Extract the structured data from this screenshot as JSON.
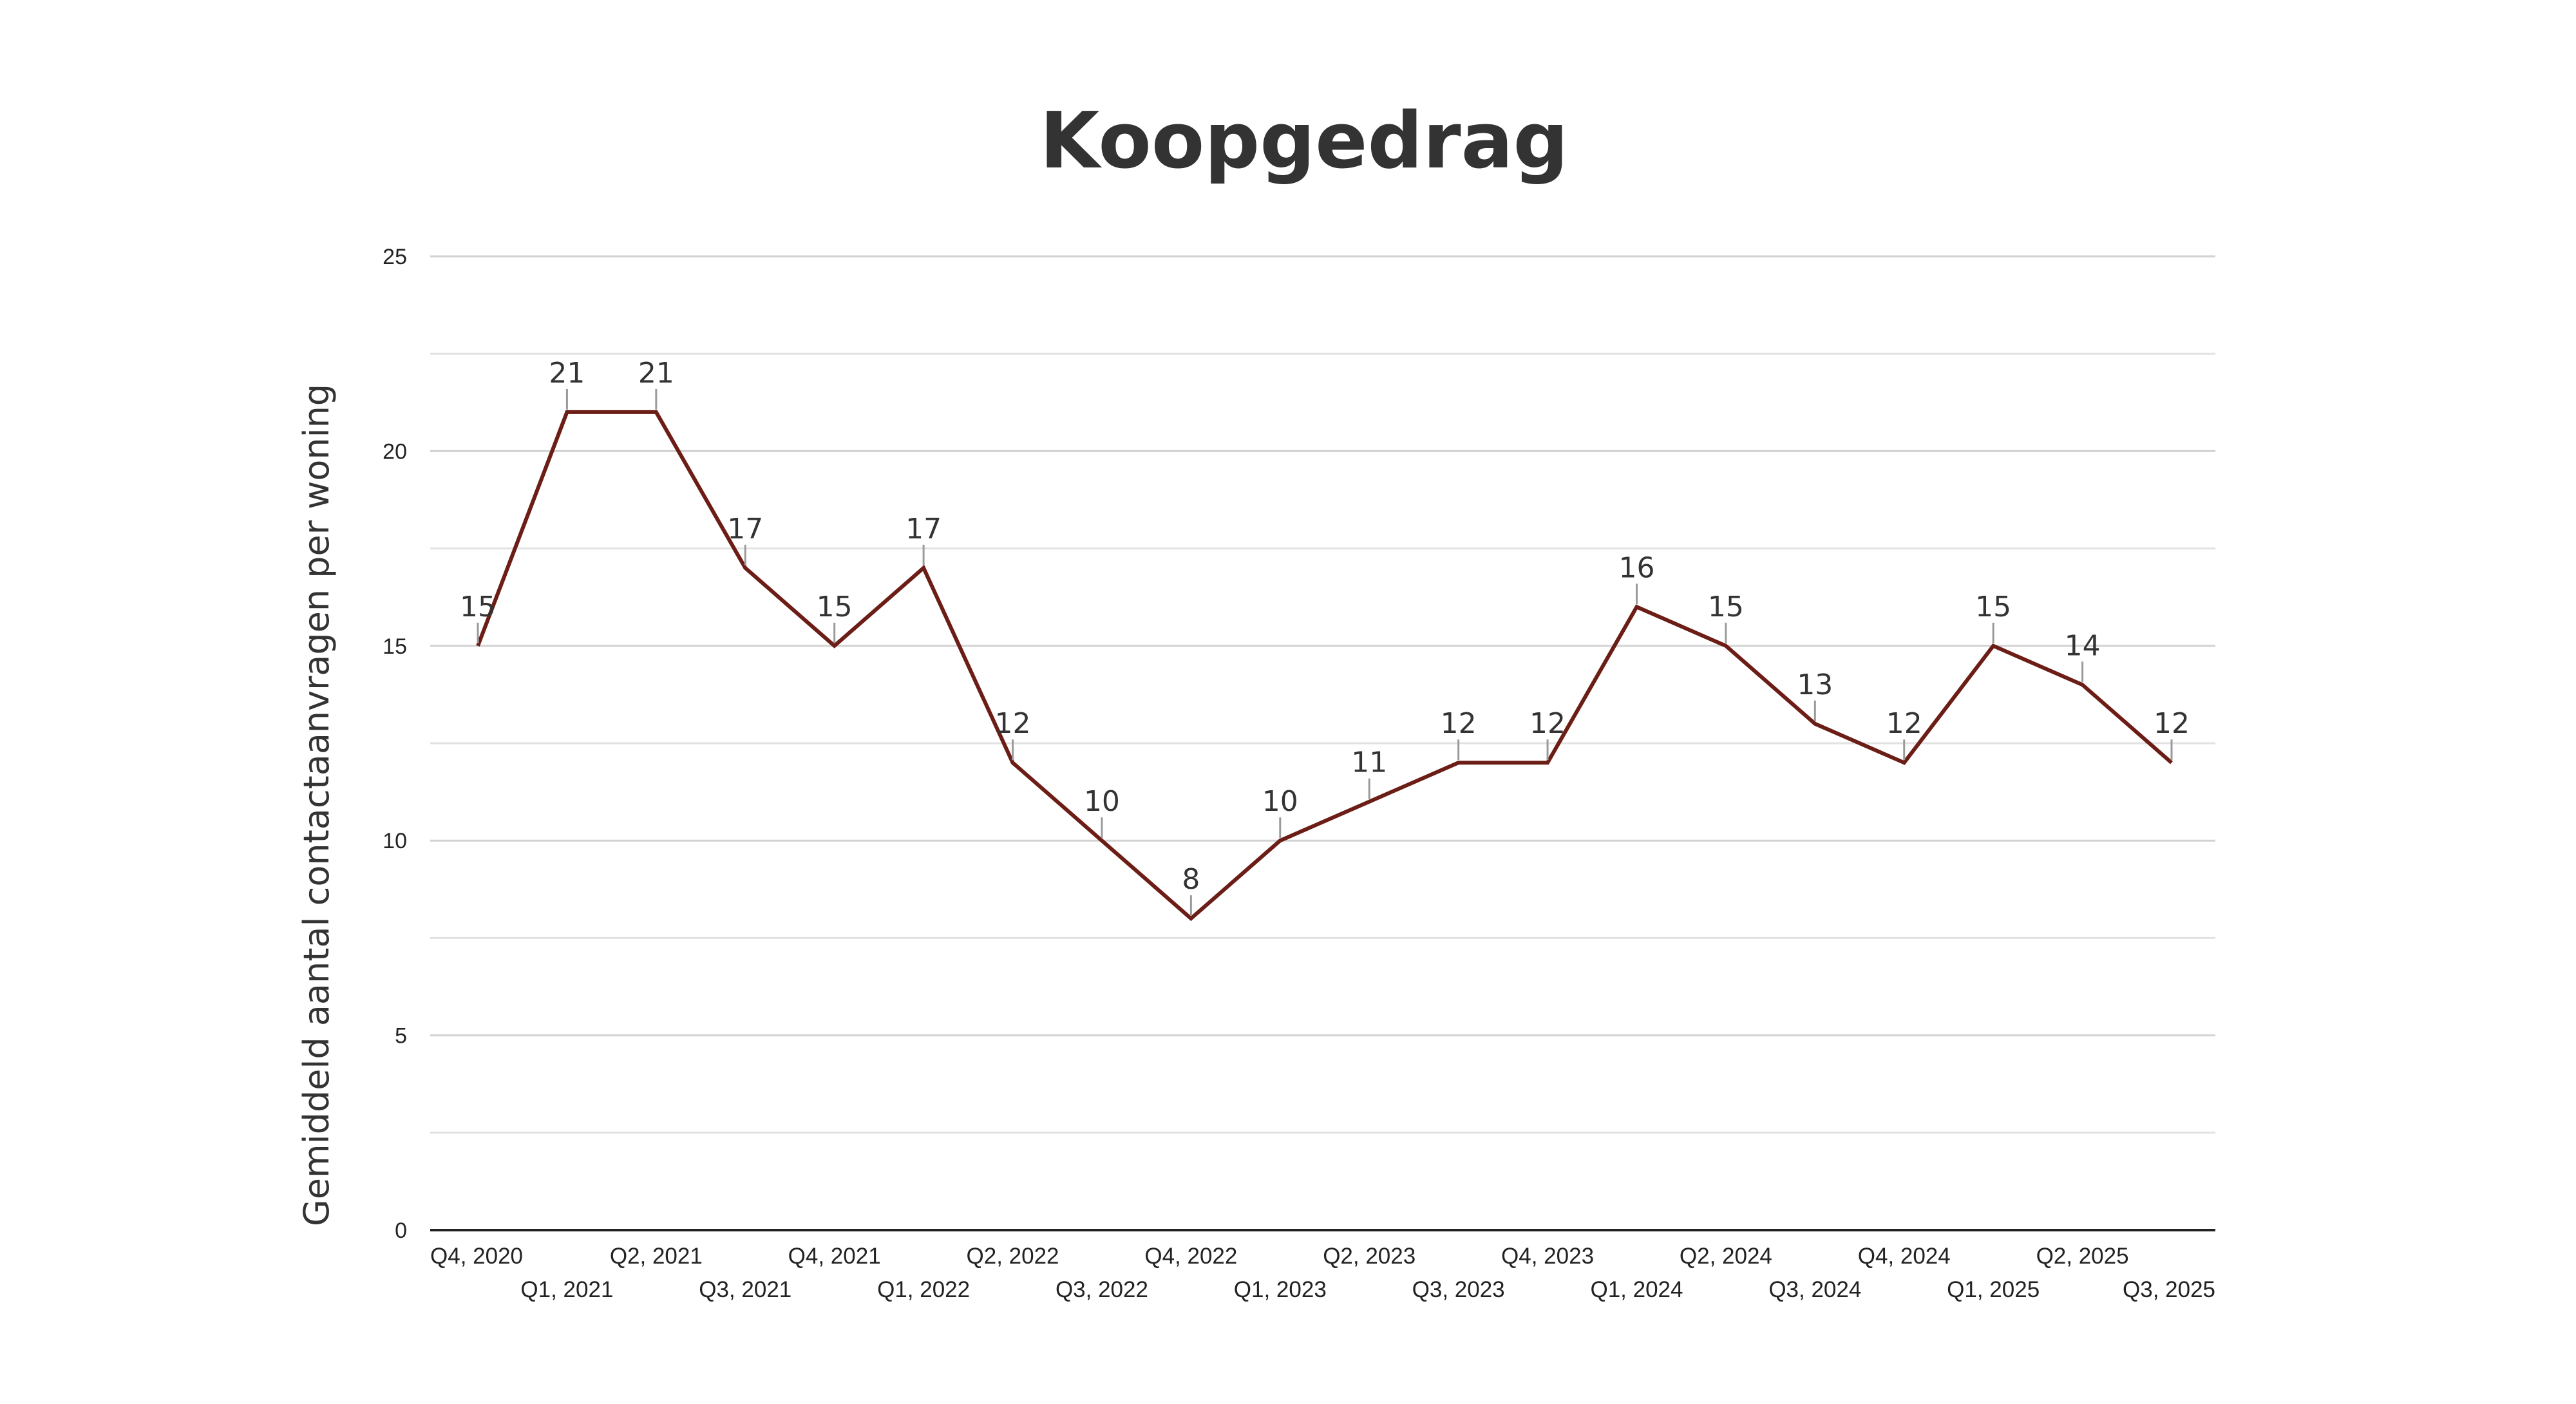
{
  "chart_data": {
    "type": "line",
    "title": "Koopgedrag",
    "xlabel": "",
    "ylabel": "Gemiddeld aantal contactaanvragen per woning",
    "categories": [
      "Q4, 2020",
      "Q1, 2021",
      "Q2, 2021",
      "Q3, 2021",
      "Q4, 2021",
      "Q1, 2022",
      "Q2, 2022",
      "Q3, 2022",
      "Q4, 2022",
      "Q1, 2023",
      "Q2, 2023",
      "Q3, 2023",
      "Q4, 2023",
      "Q1, 2024",
      "Q2, 2024",
      "Q3, 2024",
      "Q4, 2024",
      "Q1, 2025",
      "Q2, 2025",
      "Q3, 2025"
    ],
    "series": [
      {
        "values": [
          15,
          21,
          21,
          17,
          15,
          17,
          12,
          10,
          8,
          10,
          11,
          12,
          12,
          16,
          15,
          13,
          12,
          15,
          14,
          12
        ],
        "color": "#6b1d16"
      }
    ],
    "y_ticks": [
      "0",
      "5",
      "10",
      "15",
      "20",
      "25"
    ],
    "ylim": [
      0,
      25
    ],
    "y_tick_step": 5,
    "y_minor_step": 2.5,
    "grid": true,
    "data_labels": true,
    "legend": "none"
  }
}
